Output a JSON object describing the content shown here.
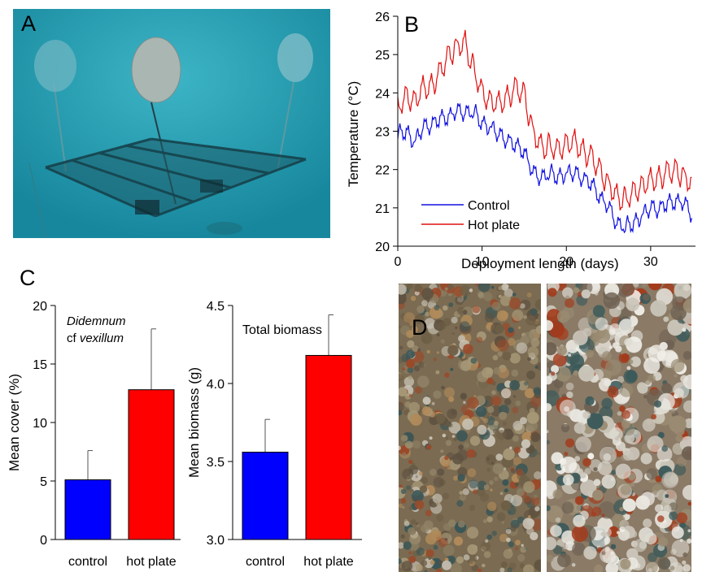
{
  "panels": {
    "a": "A",
    "b": "B",
    "c": "C",
    "d": "D"
  },
  "colors": {
    "control": "#1010e0",
    "hot_plate": "#e01010",
    "control_bar": "#0000ff",
    "hot_plate_bar": "#ff0000",
    "water": "#1f97ad"
  },
  "chart_data": [
    {
      "type": "line",
      "title": "",
      "xlabel": "Deployment length (days)",
      "ylabel": "Temperature (°C)",
      "xlim": [
        0,
        35
      ],
      "ylim": [
        20,
        26
      ],
      "xticks": [
        0,
        10,
        20,
        30
      ],
      "yticks": [
        20,
        21,
        22,
        23,
        24,
        25,
        26
      ],
      "legend": "bottom-left",
      "grid": false,
      "series": [
        {
          "name": "Control",
          "color": "#1010e0",
          "x": [
            0,
            1,
            2,
            3,
            4,
            5,
            6,
            7,
            8,
            9,
            10,
            11,
            12,
            13,
            14,
            15,
            16,
            17,
            18,
            19,
            20,
            21,
            22,
            23,
            24,
            25,
            26,
            27,
            28,
            29,
            30,
            31,
            32,
            33,
            34,
            35
          ],
          "y": [
            22.9,
            23.0,
            22.7,
            23.1,
            23.2,
            23.3,
            23.4,
            23.5,
            23.5,
            23.5,
            23.2,
            23.1,
            22.9,
            22.8,
            22.6,
            22.5,
            21.9,
            21.8,
            21.9,
            21.8,
            21.9,
            21.9,
            21.8,
            21.6,
            21.3,
            21.0,
            20.6,
            20.5,
            20.6,
            20.8,
            21.0,
            21.0,
            21.1,
            21.2,
            21.1,
            20.8
          ]
        },
        {
          "name": "Hot plate",
          "color": "#e01010",
          "x": [
            0,
            1,
            2,
            3,
            4,
            5,
            6,
            7,
            8,
            9,
            10,
            11,
            12,
            13,
            14,
            15,
            16,
            17,
            18,
            19,
            20,
            21,
            22,
            23,
            24,
            25,
            26,
            27,
            28,
            29,
            30,
            31,
            32,
            33,
            34,
            35
          ],
          "y": [
            23.6,
            23.9,
            23.8,
            24.1,
            24.2,
            24.5,
            25.0,
            25.2,
            25.3,
            24.6,
            24.0,
            23.8,
            23.7,
            23.9,
            24.1,
            24.0,
            23.0,
            22.6,
            22.6,
            22.5,
            22.7,
            22.7,
            22.5,
            22.3,
            22.0,
            21.6,
            21.3,
            21.2,
            21.4,
            21.6,
            21.7,
            21.8,
            21.9,
            22.0,
            21.8,
            21.6
          ]
        }
      ]
    },
    {
      "type": "bar",
      "title": "",
      "annotation": {
        "line1": "Didemnum",
        "line2_prefix": "cf ",
        "line2_italic": "vexillum"
      },
      "xlabel": "",
      "ylabel": "Mean cover (%)",
      "categories": [
        "control",
        "hot plate"
      ],
      "values": [
        5.1,
        12.8
      ],
      "errors": [
        2.5,
        5.2
      ],
      "ylim": [
        0,
        20
      ],
      "yticks": [
        0,
        5,
        10,
        15,
        20
      ],
      "colors": [
        "#0000ff",
        "#ff0000"
      ]
    },
    {
      "type": "bar",
      "title": "",
      "annotation": {
        "line1": "Total biomass"
      },
      "xlabel": "",
      "ylabel": "Mean biomass (g)",
      "categories": [
        "control",
        "hot plate"
      ],
      "values": [
        3.56,
        4.18
      ],
      "errors": [
        0.21,
        0.26
      ],
      "ylim": [
        3.0,
        4.5
      ],
      "yticks": [
        "3.0",
        "3.5",
        "4.0",
        "4.5"
      ],
      "colors": [
        "#0000ff",
        "#ff0000"
      ]
    }
  ]
}
